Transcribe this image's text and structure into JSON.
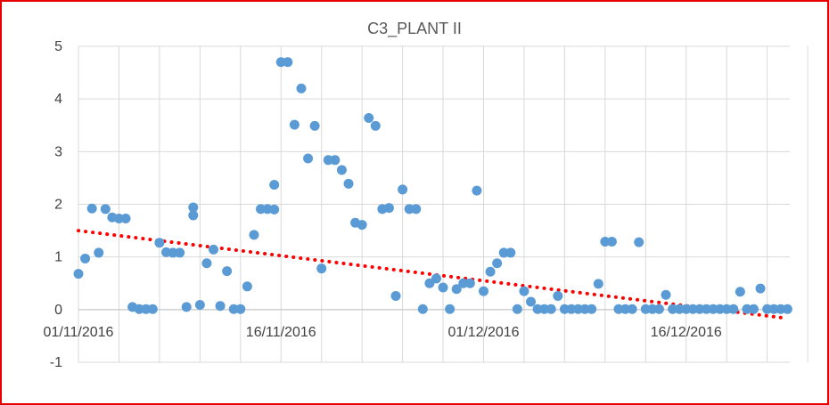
{
  "chart_data": {
    "type": "scatter",
    "title": "C3_PLANT II",
    "xlabel": "",
    "ylabel": "",
    "x_axis": {
      "type": "date",
      "min": "2016-11-01",
      "max": "2016-12-28",
      "tick_labels": [
        "01/11/2016",
        "16/11/2016",
        "01/12/2016",
        "16/12/2016"
      ]
    },
    "ylim": [
      -1,
      5
    ],
    "y_ticks": [
      5,
      4,
      3,
      2,
      1,
      0,
      -1
    ],
    "grid": true,
    "legend": "none",
    "series": [
      {
        "marker_color": "#5b9bd5",
        "points": [
          [
            "2016-11-01",
            0.68
          ],
          [
            "2016-11-01",
            0.97
          ],
          [
            "2016-11-02",
            1.92
          ],
          [
            "2016-11-02",
            1.08
          ],
          [
            "2016-11-03",
            1.91
          ],
          [
            "2016-11-03",
            1.75
          ],
          [
            "2016-11-04",
            1.73
          ],
          [
            "2016-11-04",
            1.73
          ],
          [
            "2016-11-05",
            0.05
          ],
          [
            "2016-11-05",
            0.01
          ],
          [
            "2016-11-06",
            0.01
          ],
          [
            "2016-11-06",
            0.01
          ],
          [
            "2016-11-07",
            1.27
          ],
          [
            "2016-11-07",
            1.09
          ],
          [
            "2016-11-08",
            1.08
          ],
          [
            "2016-11-08",
            1.08
          ],
          [
            "2016-11-09",
            0.05
          ],
          [
            "2016-11-09",
            1.79
          ],
          [
            "2016-11-09",
            1.94
          ],
          [
            "2016-11-10",
            0.09
          ],
          [
            "2016-11-10",
            0.88
          ],
          [
            "2016-11-11",
            1.14
          ],
          [
            "2016-11-11",
            0.07
          ],
          [
            "2016-11-12",
            0.73
          ],
          [
            "2016-11-12",
            0.01
          ],
          [
            "2016-11-13",
            0.01
          ],
          [
            "2016-11-13",
            0.44
          ],
          [
            "2016-11-14",
            1.42
          ],
          [
            "2016-11-14",
            1.91
          ],
          [
            "2016-11-15",
            1.91
          ],
          [
            "2016-11-15",
            1.9
          ],
          [
            "2016-11-15",
            2.37
          ],
          [
            "2016-11-16",
            4.7
          ],
          [
            "2016-11-16",
            4.7
          ],
          [
            "2016-11-17",
            3.51
          ],
          [
            "2016-11-17",
            4.2
          ],
          [
            "2016-11-18",
            2.87
          ],
          [
            "2016-11-18",
            3.49
          ],
          [
            "2016-11-19",
            0.78
          ],
          [
            "2016-11-19",
            2.84
          ],
          [
            "2016-11-20",
            2.84
          ],
          [
            "2016-11-20",
            2.65
          ],
          [
            "2016-11-21",
            2.39
          ],
          [
            "2016-11-21",
            1.65
          ],
          [
            "2016-11-22",
            1.61
          ],
          [
            "2016-11-22",
            3.64
          ],
          [
            "2016-11-23",
            3.49
          ],
          [
            "2016-11-23",
            1.91
          ],
          [
            "2016-11-24",
            1.93
          ],
          [
            "2016-11-24",
            0.26
          ],
          [
            "2016-11-25",
            2.28
          ],
          [
            "2016-11-25",
            1.91
          ],
          [
            "2016-11-26",
            1.91
          ],
          [
            "2016-11-26",
            0.01
          ],
          [
            "2016-11-27",
            0.5
          ],
          [
            "2016-11-27",
            0.59
          ],
          [
            "2016-11-28",
            0.42
          ],
          [
            "2016-11-28",
            0.01
          ],
          [
            "2016-11-29",
            0.39
          ],
          [
            "2016-11-29",
            0.5
          ],
          [
            "2016-11-30",
            0.5
          ],
          [
            "2016-11-30",
            2.26
          ],
          [
            "2016-12-01",
            0.35
          ],
          [
            "2016-12-01",
            0.72
          ],
          [
            "2016-12-02",
            0.88
          ],
          [
            "2016-12-02",
            1.08
          ],
          [
            "2016-12-03",
            1.08
          ],
          [
            "2016-12-03",
            0.01
          ],
          [
            "2016-12-04",
            0.35
          ],
          [
            "2016-12-04",
            0.15
          ],
          [
            "2016-12-05",
            0.01
          ],
          [
            "2016-12-05",
            0.01
          ],
          [
            "2016-12-06",
            0.01
          ],
          [
            "2016-12-06",
            0.26
          ],
          [
            "2016-12-07",
            0.01
          ],
          [
            "2016-12-07",
            0.01
          ],
          [
            "2016-12-08",
            0.01
          ],
          [
            "2016-12-08",
            0.01
          ],
          [
            "2016-12-09",
            0.01
          ],
          [
            "2016-12-09",
            0.49
          ],
          [
            "2016-12-10",
            1.29
          ],
          [
            "2016-12-10",
            1.29
          ],
          [
            "2016-12-11",
            0.01
          ],
          [
            "2016-12-11",
            0.01
          ],
          [
            "2016-12-12",
            0.01
          ],
          [
            "2016-12-12",
            1.28
          ],
          [
            "2016-12-13",
            0.01
          ],
          [
            "2016-12-13",
            0.01
          ],
          [
            "2016-12-14",
            0.01
          ],
          [
            "2016-12-14",
            0.28
          ],
          [
            "2016-12-15",
            0.01
          ],
          [
            "2016-12-15",
            0.01
          ],
          [
            "2016-12-16",
            0.01
          ],
          [
            "2016-12-16",
            0.01
          ],
          [
            "2016-12-17",
            0.01
          ],
          [
            "2016-12-17",
            0.01
          ],
          [
            "2016-12-18",
            0.01
          ],
          [
            "2016-12-18",
            0.01
          ],
          [
            "2016-12-19",
            0.01
          ],
          [
            "2016-12-19",
            0.01
          ],
          [
            "2016-12-20",
            0.34
          ],
          [
            "2016-12-20",
            0.01
          ],
          [
            "2016-12-21",
            0.01
          ],
          [
            "2016-12-21",
            0.4
          ],
          [
            "2016-12-22",
            0.01
          ],
          [
            "2016-12-22",
            0.01
          ],
          [
            "2016-12-23",
            0.01
          ],
          [
            "2016-12-23",
            0.01
          ]
        ]
      }
    ],
    "trendline": {
      "type": "linear",
      "color": "#ff0000",
      "style": "dotted",
      "start": [
        "2016-11-01",
        1.5
      ],
      "end": [
        "2016-12-23",
        -0.15
      ]
    }
  }
}
